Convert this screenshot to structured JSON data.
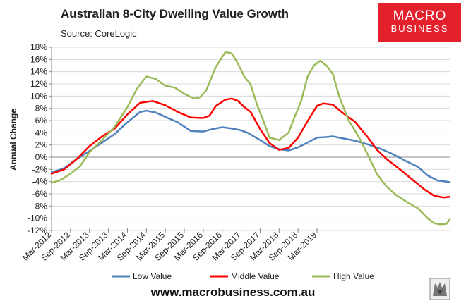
{
  "header": {
    "title": "Australian 8-City Dwelling Value Growth",
    "source": "Source: CoreLogic"
  },
  "logo": {
    "line1": "MACRO",
    "line2": "BUSINESS"
  },
  "footer": {
    "url": "www.macrobusiness.com.au"
  },
  "colors": {
    "low": "#4f81bd",
    "middle": "#ff0000",
    "high": "#9bbb59",
    "brand": "#e3202b"
  },
  "chart_data": {
    "type": "line",
    "ylabel": "Annual Change",
    "xlabel": "",
    "ylim": [
      -12,
      18
    ],
    "yticks": [
      -12,
      -10,
      -8,
      -6,
      -4,
      -2,
      0,
      2,
      4,
      6,
      8,
      10,
      12,
      14,
      16,
      18
    ],
    "ytick_labels": [
      "-12%",
      "-10%",
      "-8%",
      "-6%",
      "-4%",
      "-2%",
      "0%",
      "2%",
      "4%",
      "6%",
      "8%",
      "10%",
      "12%",
      "14%",
      "16%",
      "18%"
    ],
    "x_start": "Mar-2012",
    "x_end": "Jul-2019",
    "x_count": 89,
    "xtick_labels": [
      "Mar-2012",
      "Sep-2012",
      "Mar-2013",
      "Sep-2013",
      "Mar-2014",
      "Sep-2014",
      "Mar-2015",
      "Sep-2015",
      "Mar-2016",
      "Sep-2016",
      "Mar-2017",
      "Sep-2017",
      "Mar-2018",
      "Sep-2018",
      "Mar-2019"
    ],
    "legend_position": "bottom",
    "series": [
      {
        "name": "Low Value",
        "color": "#4f81bd",
        "values": [
          [
            0,
            -2.5
          ],
          [
            4,
            -1.8
          ],
          [
            8,
            -0.3
          ],
          [
            12,
            1.0
          ],
          [
            16,
            2.4
          ],
          [
            20,
            3.8
          ],
          [
            24,
            5.7
          ],
          [
            28,
            7.4
          ],
          [
            30,
            7.6
          ],
          [
            33,
            7.3
          ],
          [
            36,
            6.6
          ],
          [
            40,
            5.7
          ],
          [
            44,
            4.3
          ],
          [
            48,
            4.2
          ],
          [
            51,
            4.6
          ],
          [
            54,
            4.9
          ],
          [
            57,
            4.7
          ],
          [
            60,
            4.4
          ],
          [
            62,
            4.0
          ],
          [
            66,
            2.8
          ],
          [
            69,
            1.8
          ],
          [
            72,
            1.3
          ],
          [
            75,
            1.1
          ],
          [
            78,
            1.6
          ],
          [
            81,
            2.4
          ],
          [
            84,
            3.2
          ],
          [
            87,
            3.3
          ],
          [
            89,
            3.4
          ],
          [
            92,
            3.1
          ],
          [
            96,
            2.7
          ],
          [
            100,
            2.1
          ],
          [
            104,
            1.4
          ],
          [
            108,
            0.5
          ],
          [
            112,
            -0.6
          ],
          [
            116,
            -1.6
          ],
          [
            119,
            -3.0
          ],
          [
            122,
            -3.8
          ],
          [
            125,
            -4.0
          ],
          [
            126,
            -4.1
          ]
        ]
      },
      {
        "name": "Middle Value",
        "color": "#ff0000",
        "values": [
          [
            0,
            -2.7
          ],
          [
            4,
            -2.0
          ],
          [
            8,
            -0.3
          ],
          [
            12,
            1.8
          ],
          [
            16,
            3.4
          ],
          [
            20,
            4.7
          ],
          [
            24,
            7.0
          ],
          [
            28,
            8.9
          ],
          [
            32,
            9.2
          ],
          [
            36,
            8.5
          ],
          [
            40,
            7.4
          ],
          [
            44,
            6.5
          ],
          [
            48,
            6.4
          ],
          [
            50,
            6.8
          ],
          [
            52,
            8.4
          ],
          [
            55,
            9.4
          ],
          [
            57,
            9.6
          ],
          [
            59,
            9.2
          ],
          [
            61,
            8.2
          ],
          [
            63,
            7.4
          ],
          [
            66,
            4.6
          ],
          [
            69,
            2.3
          ],
          [
            72,
            1.2
          ],
          [
            75,
            1.5
          ],
          [
            78,
            3.2
          ],
          [
            81,
            5.9
          ],
          [
            84,
            8.4
          ],
          [
            86,
            8.8
          ],
          [
            89,
            8.6
          ],
          [
            92,
            7.3
          ],
          [
            96,
            5.8
          ],
          [
            100,
            3.3
          ],
          [
            103,
            1.2
          ],
          [
            106,
            -0.3
          ],
          [
            110,
            -1.9
          ],
          [
            114,
            -3.6
          ],
          [
            118,
            -5.3
          ],
          [
            121,
            -6.3
          ],
          [
            124,
            -6.6
          ],
          [
            126,
            -6.5
          ]
        ]
      },
      {
        "name": "High Value",
        "color": "#9bbb59",
        "values": [
          [
            0,
            -4.2
          ],
          [
            3,
            -3.7
          ],
          [
            6,
            -2.7
          ],
          [
            9,
            -1.5
          ],
          [
            12,
            0.8
          ],
          [
            16,
            2.8
          ],
          [
            20,
            5.0
          ],
          [
            24,
            8.2
          ],
          [
            27,
            11.2
          ],
          [
            30,
            13.2
          ],
          [
            33,
            12.8
          ],
          [
            36,
            11.7
          ],
          [
            39,
            11.4
          ],
          [
            42,
            10.4
          ],
          [
            45,
            9.6
          ],
          [
            47,
            9.8
          ],
          [
            49,
            11.0
          ],
          [
            52,
            14.8
          ],
          [
            55,
            17.2
          ],
          [
            57,
            17.0
          ],
          [
            59,
            15.3
          ],
          [
            61,
            13.2
          ],
          [
            63,
            11.9
          ],
          [
            65,
            8.6
          ],
          [
            67,
            6.0
          ],
          [
            69,
            3.2
          ],
          [
            72,
            2.8
          ],
          [
            75,
            4.0
          ],
          [
            77,
            6.7
          ],
          [
            79,
            9.2
          ],
          [
            81,
            13.2
          ],
          [
            83,
            15.0
          ],
          [
            85,
            15.8
          ],
          [
            87,
            15.0
          ],
          [
            89,
            13.6
          ],
          [
            91,
            10.0
          ],
          [
            94,
            6.0
          ],
          [
            97,
            3.5
          ],
          [
            100,
            0.5
          ],
          [
            103,
            -2.8
          ],
          [
            106,
            -4.8
          ],
          [
            109,
            -6.2
          ],
          [
            112,
            -7.2
          ],
          [
            116,
            -8.4
          ],
          [
            119,
            -10.0
          ],
          [
            121,
            -10.8
          ],
          [
            123,
            -11.0
          ],
          [
            125,
            -10.9
          ],
          [
            126,
            -10.2
          ]
        ]
      }
    ]
  }
}
